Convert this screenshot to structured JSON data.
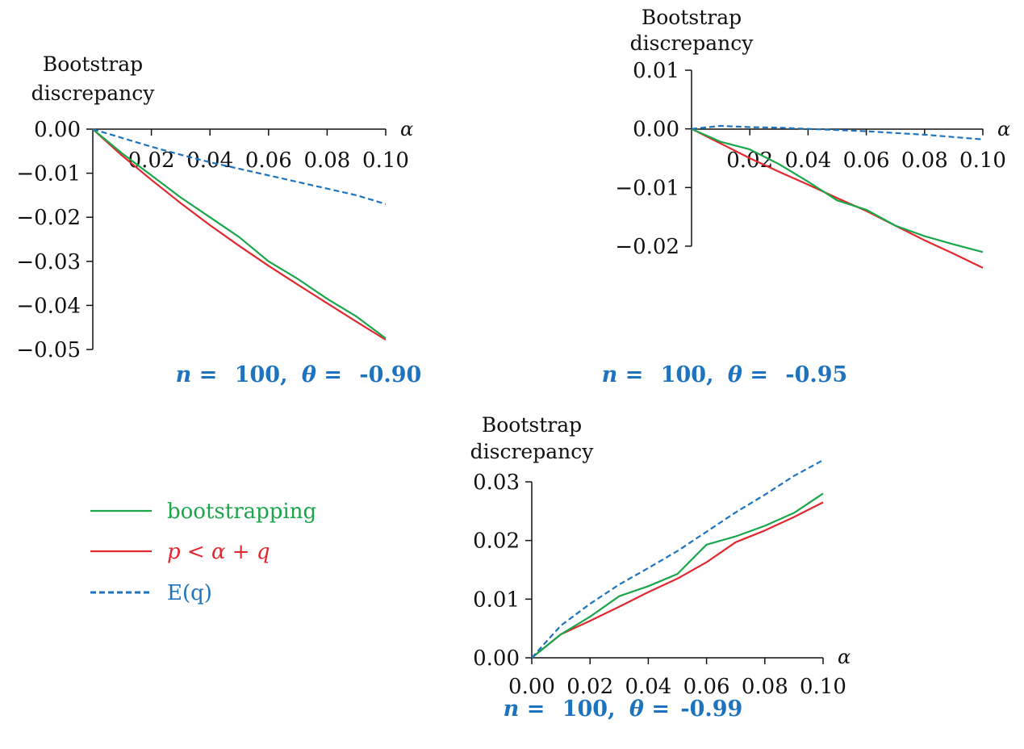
{
  "colors": {
    "bootstrapping": "#1aa64a",
    "p_lt_alpha_q": "#e0282e",
    "E_q": "#1e73be"
  },
  "legend": {
    "entries": [
      {
        "key": "bootstrapping",
        "label": "bootstrapping",
        "style": "solid"
      },
      {
        "key": "p_lt_alpha_q",
        "label": "p < α + q",
        "style": "solid"
      },
      {
        "key": "E_q",
        "label": "E(q)",
        "style": "dashed"
      }
    ]
  },
  "chart_data": [
    {
      "type": "line",
      "ylabel": [
        "Bootstrap",
        "discrepancy"
      ],
      "xlabel": "α",
      "caption": {
        "n_label": "n =",
        "n_value": "100,",
        "theta_label": "θ =",
        "theta_value": "-0.90"
      },
      "xlim": [
        0,
        0.1
      ],
      "ylim": [
        -0.05,
        0.0
      ],
      "x_ticks": [
        "0.02",
        "0.04",
        "0.06",
        "0.08",
        "0.10"
      ],
      "y_ticks": [
        "0.00",
        "−0.01",
        "−0.02",
        "−0.03",
        "−0.04",
        "−0.05"
      ],
      "x": [
        0,
        0.01,
        0.02,
        0.03,
        0.04,
        0.05,
        0.06,
        0.07,
        0.08,
        0.09,
        0.1
      ],
      "series": [
        {
          "key": "bootstrapping",
          "values": [
            0,
            -0.0055,
            -0.0105,
            -0.0155,
            -0.02,
            -0.0245,
            -0.03,
            -0.034,
            -0.0385,
            -0.0425,
            -0.0475
          ]
        },
        {
          "key": "p_lt_alpha_q",
          "values": [
            0,
            -0.006,
            -0.0115,
            -0.0168,
            -0.0218,
            -0.0265,
            -0.031,
            -0.0353,
            -0.0395,
            -0.0437,
            -0.0478
          ]
        },
        {
          "key": "E_q",
          "values": [
            0,
            -0.002,
            -0.004,
            -0.0058,
            -0.0075,
            -0.009,
            -0.0105,
            -0.012,
            -0.0135,
            -0.015,
            -0.017
          ]
        }
      ]
    },
    {
      "type": "line",
      "ylabel": [
        "Bootstrap",
        "discrepancy"
      ],
      "xlabel": "α",
      "caption": {
        "n_label": "n =",
        "n_value": "100,",
        "theta_label": "θ =",
        "theta_value": "-0.95"
      },
      "xlim": [
        0,
        0.1
      ],
      "ylim": [
        -0.02,
        0.01
      ],
      "x_ticks": [
        "0.02",
        "0.04",
        "0.06",
        "0.08",
        "0.10"
      ],
      "y_ticks": [
        "0.01",
        "0.00",
        "−0.01",
        "−0.02"
      ],
      "x": [
        0,
        0.01,
        0.02,
        0.03,
        0.04,
        0.05,
        0.06,
        0.07,
        0.08,
        0.09,
        0.1
      ],
      "series": [
        {
          "key": "bootstrapping",
          "values": [
            0,
            -0.0022,
            -0.0035,
            -0.006,
            -0.009,
            -0.0122,
            -0.0138,
            -0.0165,
            -0.0183,
            -0.0197,
            -0.021
          ]
        },
        {
          "key": "p_lt_alpha_q",
          "values": [
            0,
            -0.0025,
            -0.005,
            -0.0073,
            -0.0095,
            -0.0118,
            -0.014,
            -0.0165,
            -0.019,
            -0.0213,
            -0.0237
          ]
        },
        {
          "key": "E_q",
          "values": [
            0,
            0.0005,
            0.0003,
            0.0002,
            0.0,
            -0.0002,
            -0.0004,
            -0.0007,
            -0.001,
            -0.0014,
            -0.0018
          ]
        }
      ]
    },
    {
      "type": "line",
      "ylabel": [
        "Bootstrap",
        "discrepancy"
      ],
      "xlabel": "α",
      "caption": {
        "n_label": "n =",
        "n_value": "100,",
        "theta_label": "θ =",
        "theta_value": "-0.99"
      },
      "xlim": [
        0,
        0.1
      ],
      "ylim": [
        0.0,
        0.03
      ],
      "x_ticks": [
        "0.00",
        "0.02",
        "0.04",
        "0.06",
        "0.08",
        "0.10"
      ],
      "y_ticks": [
        "0.03",
        "0.02",
        "0.01",
        "0.00"
      ],
      "x": [
        0,
        0.01,
        0.02,
        0.03,
        0.04,
        0.05,
        0.06,
        0.07,
        0.08,
        0.09,
        0.1
      ],
      "series": [
        {
          "key": "bootstrapping",
          "values": [
            0,
            0.004,
            0.007,
            0.0105,
            0.0122,
            0.0143,
            0.0193,
            0.0207,
            0.0225,
            0.0247,
            0.028
          ]
        },
        {
          "key": "p_lt_alpha_q",
          "values": [
            0,
            0.004,
            0.0063,
            0.0087,
            0.0112,
            0.0135,
            0.0163,
            0.0197,
            0.0217,
            0.024,
            0.0265
          ]
        },
        {
          "key": "E_q",
          "values": [
            0,
            0.0055,
            0.0092,
            0.0125,
            0.0153,
            0.0182,
            0.0215,
            0.0248,
            0.0278,
            0.031,
            0.0337
          ]
        }
      ]
    }
  ]
}
